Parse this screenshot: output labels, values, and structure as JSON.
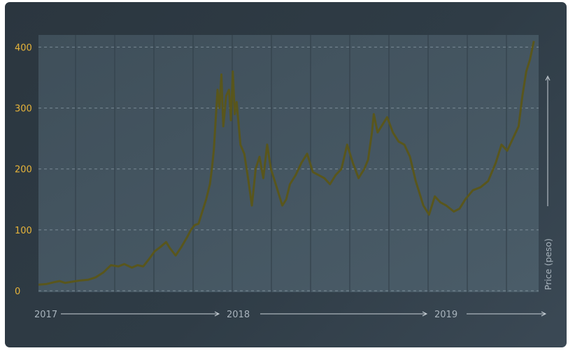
{
  "chart_data": {
    "type": "line",
    "title": "",
    "xlabel": "",
    "ylabel": "Price (peso)",
    "ylim": [
      0,
      420
    ],
    "yticks": [
      0,
      100,
      200,
      300,
      400
    ],
    "year_labels": [
      "2017",
      "2018",
      "2019"
    ],
    "grid": true,
    "colors": {
      "line": "#5b5618",
      "tick_text": "#e7b43a",
      "axis_text": "#a9b4bd"
    },
    "series": [
      {
        "values": [
          [
            2017.0,
            10
          ],
          [
            2017.04,
            11
          ],
          [
            2017.08,
            14
          ],
          [
            2017.11,
            16
          ],
          [
            2017.14,
            13
          ],
          [
            2017.18,
            15
          ],
          [
            2017.22,
            17
          ],
          [
            2017.26,
            18
          ],
          [
            2017.3,
            22
          ],
          [
            2017.34,
            30
          ],
          [
            2017.38,
            42
          ],
          [
            2017.42,
            40
          ],
          [
            2017.45,
            44
          ],
          [
            2017.49,
            38
          ],
          [
            2017.52,
            42
          ],
          [
            2017.55,
            40
          ],
          [
            2017.58,
            52
          ],
          [
            2017.61,
            65
          ],
          [
            2017.64,
            72
          ],
          [
            2017.67,
            80
          ],
          [
            2017.69,
            70
          ],
          [
            2017.72,
            58
          ],
          [
            2017.75,
            72
          ],
          [
            2017.78,
            88
          ],
          [
            2017.8,
            100
          ],
          [
            2017.82,
            108
          ],
          [
            2017.84,
            110
          ],
          [
            2017.86,
            130
          ],
          [
            2017.88,
            150
          ],
          [
            2017.9,
            175
          ],
          [
            2017.91,
            200
          ],
          [
            2017.92,
            230
          ],
          [
            2017.93,
            280
          ],
          [
            2017.94,
            330
          ],
          [
            2017.95,
            300
          ],
          [
            2017.96,
            355
          ],
          [
            2017.97,
            270
          ],
          [
            2017.985,
            320
          ],
          [
            2018.0,
            330
          ],
          [
            2018.01,
            280
          ],
          [
            2018.02,
            360
          ],
          [
            2018.03,
            290
          ],
          [
            2018.04,
            310
          ],
          [
            2018.06,
            240
          ],
          [
            2018.08,
            225
          ],
          [
            2018.1,
            185
          ],
          [
            2018.12,
            140
          ],
          [
            2018.14,
            200
          ],
          [
            2018.16,
            220
          ],
          [
            2018.18,
            185
          ],
          [
            2018.2,
            240
          ],
          [
            2018.22,
            200
          ],
          [
            2018.24,
            180
          ],
          [
            2018.26,
            160
          ],
          [
            2018.28,
            140
          ],
          [
            2018.3,
            150
          ],
          [
            2018.32,
            175
          ],
          [
            2018.35,
            190
          ],
          [
            2018.38,
            210
          ],
          [
            2018.41,
            225
          ],
          [
            2018.44,
            195
          ],
          [
            2018.47,
            190
          ],
          [
            2018.5,
            185
          ],
          [
            2018.53,
            175
          ],
          [
            2018.56,
            190
          ],
          [
            2018.59,
            200
          ],
          [
            2018.62,
            240
          ],
          [
            2018.65,
            210
          ],
          [
            2018.68,
            185
          ],
          [
            2018.71,
            200
          ],
          [
            2018.73,
            215
          ],
          [
            2018.75,
            260
          ],
          [
            2018.76,
            290
          ],
          [
            2018.78,
            260
          ],
          [
            2018.8,
            270
          ],
          [
            2018.83,
            285
          ],
          [
            2018.86,
            260
          ],
          [
            2018.89,
            245
          ],
          [
            2018.92,
            240
          ],
          [
            2018.95,
            220
          ],
          [
            2018.98,
            180
          ],
          [
            2019.0,
            160
          ],
          [
            2019.02,
            140
          ],
          [
            2019.05,
            125
          ],
          [
            2019.08,
            155
          ],
          [
            2019.11,
            145
          ],
          [
            2019.14,
            140
          ],
          [
            2019.18,
            130
          ],
          [
            2019.21,
            135
          ],
          [
            2019.24,
            150
          ],
          [
            2019.28,
            165
          ],
          [
            2019.32,
            170
          ],
          [
            2019.36,
            180
          ],
          [
            2019.4,
            210
          ],
          [
            2019.43,
            240
          ],
          [
            2019.46,
            230
          ],
          [
            2019.49,
            250
          ],
          [
            2019.52,
            270
          ],
          [
            2019.54,
            320
          ],
          [
            2019.56,
            360
          ],
          [
            2019.58,
            380
          ],
          [
            2019.6,
            410
          ]
        ]
      }
    ]
  }
}
